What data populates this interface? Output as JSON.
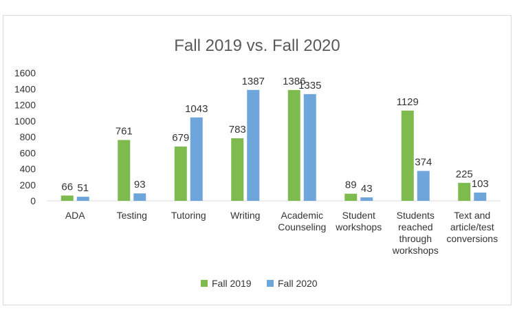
{
  "chart_data": {
    "type": "bar",
    "title": "Fall 2019 vs. Fall 2020",
    "categories": [
      [
        "ADA"
      ],
      [
        "Testing"
      ],
      [
        "Tutoring"
      ],
      [
        "Writing"
      ],
      [
        "Academic",
        "Counseling"
      ],
      [
        "Student",
        "workshops"
      ],
      [
        "Students",
        "reached",
        "through",
        "workshops"
      ],
      [
        "Text and",
        "article/test",
        "conversions"
      ]
    ],
    "series": [
      {
        "name": "Fall 2019",
        "color": "#7fba4f",
        "values": [
          66,
          761,
          679,
          783,
          1386,
          89,
          1129,
          225
        ]
      },
      {
        "name": "Fall 2020",
        "color": "#6ea6dc",
        "values": [
          51,
          93,
          1043,
          1387,
          1335,
          43,
          374,
          103
        ]
      }
    ],
    "ylim": [
      0,
      1600
    ],
    "yticks": [
      0,
      200,
      400,
      600,
      800,
      1000,
      1200,
      1400,
      1600
    ],
    "grid": false,
    "legend_position": "bottom"
  }
}
